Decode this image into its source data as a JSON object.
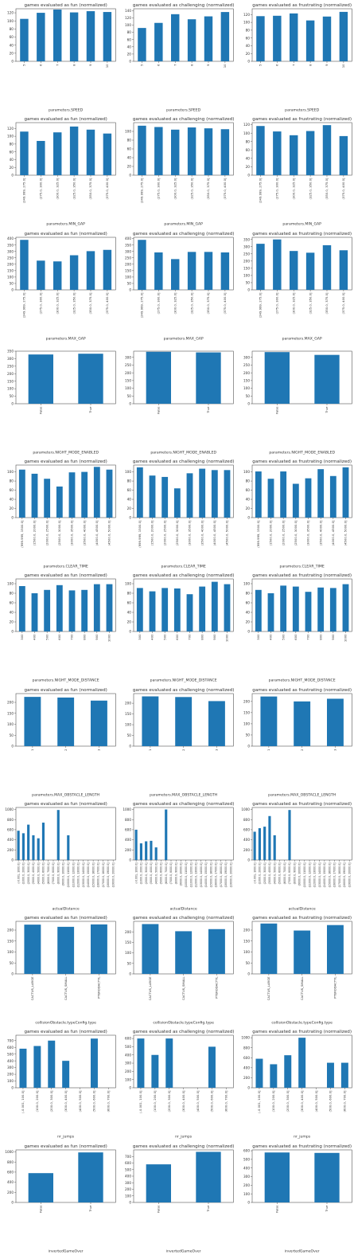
{
  "titles": {
    "fun": "games evaluated as fun (normalized)",
    "challenging": "games evaluated as challenging (normalized)",
    "frustrating": "games evaluated as frustrating (normalized)"
  },
  "bar_color": "#1f77b4",
  "chart_data": [
    {
      "type": "bar",
      "title": "games evaluated as fun (normalized)",
      "xlabel": "parameters.SPEED",
      "ylabel": "",
      "categories": [
        "5",
        "6",
        "7",
        "8",
        "9",
        "10"
      ],
      "values": [
        105,
        120,
        128,
        121,
        124,
        122
      ],
      "ylim": [
        0,
        130
      ],
      "yticks": [
        0,
        20,
        40,
        60,
        80,
        100,
        120
      ]
    },
    {
      "type": "bar",
      "title": "games evaluated as challenging (normalized)",
      "xlabel": "parameters.SPEED",
      "ylabel": "",
      "categories": [
        "5",
        "6",
        "7",
        "8",
        "9",
        "10"
      ],
      "values": [
        92,
        106,
        130,
        116,
        124,
        136
      ],
      "ylim": [
        0,
        145
      ],
      "yticks": [
        0,
        20,
        40,
        60,
        80,
        100,
        120,
        140
      ]
    },
    {
      "type": "bar",
      "title": "games evaluated as frustrating (normalized)",
      "xlabel": "parameters.SPEED",
      "ylabel": "",
      "categories": [
        "5",
        "6",
        "7",
        "8",
        "9",
        "10"
      ],
      "values": [
        116,
        117,
        123,
        105,
        115,
        127
      ],
      "ylim": [
        0,
        135
      ],
      "yticks": [
        0,
        20,
        40,
        60,
        80,
        100,
        120
      ]
    },
    {
      "type": "bar",
      "title": "games evaluated as fun (normalized)",
      "xlabel": "parameters.MIN_GAP",
      "ylabel": "",
      "categories": [
        "(249.999, 275.0]",
        "(275.0, 300.0]",
        "(300.0, 325.0]",
        "(325.0, 350.0]",
        "(350.0, 375.0]",
        "(375.0, 400.0]"
      ],
      "values": [
        112,
        88,
        110,
        125,
        117,
        107
      ],
      "ylim": [
        0,
        135
      ],
      "yticks": [
        0,
        20,
        40,
        60,
        80,
        100,
        120
      ]
    },
    {
      "type": "bar",
      "title": "games evaluated as challenging (normalized)",
      "xlabel": "parameters.MIN_GAP",
      "ylabel": "",
      "categories": [
        "(249.999, 275.0]",
        "(275.0, 300.0]",
        "(300.0, 325.0]",
        "(325.0, 350.0]",
        "(350.0, 375.0]",
        "(375.0, 400.0]"
      ],
      "values": [
        113,
        110,
        104,
        109,
        107,
        105
      ],
      "ylim": [
        0,
        120
      ],
      "yticks": [
        0,
        20,
        40,
        60,
        80,
        100
      ]
    },
    {
      "type": "bar",
      "title": "games evaluated as frustrating (normalized)",
      "xlabel": "parameters.MIN_GAP",
      "ylabel": "",
      "categories": [
        "(249.999, 275.0]",
        "(275.0, 300.0]",
        "(300.0, 325.0]",
        "(325.0, 350.0]",
        "(350.0, 375.0]",
        "(375.0, 400.0]"
      ],
      "values": [
        117,
        104,
        95,
        105,
        119,
        93
      ],
      "ylim": [
        0,
        125
      ],
      "yticks": [
        0,
        20,
        40,
        60,
        80,
        100,
        120
      ]
    },
    {
      "type": "bar",
      "title": "games evaluated as fun (normalized)",
      "xlabel": "parameters.MAX_GAP",
      "ylabel": "",
      "categories": [
        "(249.999, 275.0]",
        "(275.0, 300.0]",
        "(300.0, 325.0]",
        "(325.0, 350.0]",
        "(350.0, 375.0]",
        "(375.0, 400.0]"
      ],
      "values": [
        390,
        228,
        222,
        270,
        302,
        312
      ],
      "ylim": [
        0,
        410
      ],
      "yticks": [
        0,
        50,
        100,
        150,
        200,
        250,
        300,
        350,
        400
      ]
    },
    {
      "type": "bar",
      "title": "games evaluated as challenging (normalized)",
      "xlabel": "parameters.MAX_GAP",
      "ylabel": "",
      "categories": [
        "(249.999, 275.0]",
        "(275.0, 300.0]",
        "(300.0, 325.0]",
        "(325.0, 350.0]",
        "(350.0, 375.0]",
        "(375.0, 400.0]"
      ],
      "values": [
        390,
        292,
        240,
        296,
        296,
        292
      ],
      "ylim": [
        0,
        410
      ],
      "yticks": [
        0,
        50,
        100,
        150,
        200,
        250,
        300,
        350,
        400
      ]
    },
    {
      "type": "bar",
      "title": "games evaluated as frustrating (normalized)",
      "xlabel": "parameters.MAX_GAP",
      "ylabel": "",
      "categories": [
        "(249.999, 275.0]",
        "(275.0, 300.0]",
        "(300.0, 325.0]",
        "(325.0, 350.0]",
        "(350.0, 375.0]",
        "(375.0, 400.0]"
      ],
      "values": [
        320,
        350,
        270,
        258,
        310,
        275
      ],
      "ylim": [
        0,
        365
      ],
      "yticks": [
        0,
        50,
        100,
        150,
        200,
        250,
        300,
        350
      ]
    },
    {
      "type": "bar",
      "title": "",
      "xlabel": "parameters.NIGHT_MODE_ENABLED",
      "ylabel": "",
      "categories": [
        "False",
        "True"
      ],
      "values": [
        328,
        333
      ],
      "ylim": [
        0,
        350
      ],
      "yticks": [
        0,
        50,
        100,
        150,
        200,
        250,
        300,
        350
      ]
    },
    {
      "type": "bar",
      "title": "",
      "xlabel": "parameters.NIGHT_MODE_ENABLED",
      "ylabel": "",
      "categories": [
        "False",
        "True"
      ],
      "values": [
        336,
        332
      ],
      "ylim": [
        0,
        340
      ],
      "yticks": [
        0,
        50,
        100,
        150,
        200,
        250,
        300
      ]
    },
    {
      "type": "bar",
      "title": "",
      "xlabel": "parameters.NIGHT_MODE_ENABLED",
      "ylabel": "",
      "categories": [
        "False",
        "True"
      ],
      "values": [
        334,
        316
      ],
      "ylim": [
        0,
        340
      ],
      "yticks": [
        0,
        50,
        100,
        150,
        200,
        250,
        300
      ]
    },
    {
      "type": "bar",
      "title": "games evaluated as fun (normalized)",
      "xlabel": "parameters.CLEAR_TIME",
      "ylabel": "",
      "categories": [
        "(999.999, 1500.0]",
        "(1500.0, 2000.0]",
        "(2000.0, 2500.0]",
        "(2500.0, 3000.0]",
        "(3000.0, 3500.0]",
        "(3500.0, 4000.0]",
        "(4000.0, 4500.0]",
        "(4500.0, 5000.0]"
      ],
      "values": [
        105,
        96,
        85,
        68,
        99,
        100,
        111,
        105
      ],
      "ylim": [
        0,
        115
      ],
      "yticks": [
        0,
        20,
        40,
        60,
        80,
        100
      ]
    },
    {
      "type": "bar",
      "title": "games evaluated as challenging (normalized)",
      "xlabel": "parameters.CLEAR_TIME",
      "ylabel": "",
      "categories": [
        "(999.999, 1500.0]",
        "(1500.0, 2000.0]",
        "(2000.0, 2500.0]",
        "(2500.0, 3000.0]",
        "(3000.0, 3500.0]",
        "(3500.0, 4000.0]",
        "(4000.0, 4500.0]",
        "(4500.0, 5000.0]"
      ],
      "values": [
        110,
        92,
        89,
        64,
        97,
        107,
        104,
        104
      ],
      "ylim": [
        0,
        115
      ],
      "yticks": [
        0,
        20,
        40,
        60,
        80,
        100
      ]
    },
    {
      "type": "bar",
      "title": "games evaluated as frustrating (normalized)",
      "xlabel": "parameters.CLEAR_TIME",
      "ylabel": "",
      "categories": [
        "(999.999, 1500.0]",
        "(1500.0, 2000.0]",
        "(2000.0, 2500.0]",
        "(2500.0, 3000.0]",
        "(3000.0, 3500.0]",
        "(3500.0, 4000.0]",
        "(4000.0, 4500.0]",
        "(4500.0, 5000.0]"
      ],
      "values": [
        101,
        85,
        101,
        74,
        86,
        106,
        91,
        110
      ],
      "ylim": [
        0,
        115
      ],
      "yticks": [
        0,
        20,
        40,
        60,
        80,
        100
      ]
    },
    {
      "type": "bar",
      "title": "games evaluated as fun (normalized)",
      "xlabel": "parameters.NIGHT_MODE_DISTANCE",
      "ylabel": "",
      "categories": [
        "300",
        "400",
        "500",
        "600",
        "700",
        "800",
        "900",
        "1000"
      ],
      "values": [
        95,
        80,
        87,
        97,
        86,
        87,
        99,
        99
      ],
      "ylim": [
        0,
        110
      ],
      "yticks": [
        0,
        20,
        40,
        60,
        80,
        100
      ]
    },
    {
      "type": "bar",
      "title": "games evaluated as challenging (normalized)",
      "xlabel": "parameters.NIGHT_MODE_DISTANCE",
      "ylabel": "",
      "categories": [
        "300",
        "400",
        "500",
        "600",
        "700",
        "800",
        "900",
        "1000"
      ],
      "values": [
        91,
        84,
        91,
        90,
        78,
        94,
        104,
        99
      ],
      "ylim": [
        0,
        110
      ],
      "yticks": [
        0,
        20,
        40,
        60,
        80,
        100
      ]
    },
    {
      "type": "bar",
      "title": "games evaluated as frustrating (normalized)",
      "xlabel": "parameters.NIGHT_MODE_DISTANCE",
      "ylabel": "",
      "categories": [
        "300",
        "400",
        "500",
        "600",
        "700",
        "800",
        "900",
        "1000"
      ],
      "values": [
        87,
        80,
        96,
        94,
        83,
        92,
        91,
        99
      ],
      "ylim": [
        0,
        110
      ],
      "yticks": [
        0,
        20,
        40,
        60,
        80,
        100
      ]
    },
    {
      "type": "bar",
      "title": "games evaluated as fun (normalized)",
      "xlabel": "parameters.MAX_OBSTACLE_LENGTH",
      "ylabel": "",
      "categories": [
        "1",
        "2",
        "3"
      ],
      "values": [
        225,
        222,
        208
      ],
      "ylim": [
        0,
        240
      ],
      "yticks": [
        0,
        50,
        100,
        150,
        200
      ]
    },
    {
      "type": "bar",
      "title": "games evaluated as challenging (normalized)",
      "xlabel": "parameters.MAX_OBSTACLE_LENGTH",
      "ylabel": "",
      "categories": [
        "1",
        "2",
        "3"
      ],
      "values": [
        232,
        229,
        210
      ],
      "ylim": [
        0,
        245
      ],
      "yticks": [
        0,
        50,
        100,
        150,
        200
      ]
    },
    {
      "type": "bar",
      "title": "games evaluated as frustrating (normalized)",
      "xlabel": "parameters.MAX_OBSTACLE_LENGTH",
      "ylabel": "",
      "categories": [
        "1",
        "2",
        "3"
      ],
      "values": [
        222,
        200,
        212
      ],
      "ylim": [
        0,
        235
      ],
      "yticks": [
        0,
        50,
        100,
        150,
        200
      ]
    },
    {
      "type": "bar",
      "title": "games evaluated as fun (normalized)",
      "xlabel": "actualDistance",
      "ylabel": "",
      "categories": [
        "(-0.001, 1000.0]",
        "(1000.0, 2000.0]",
        "(2000.0, 3000.0]",
        "(3000.0, 4000.0]",
        "(4000.0, 5000.0]",
        "(5000.0, 6000.0]",
        "(6000.0, 7000.0]",
        "(7000.0, 8000.0]",
        "(8000.0, 9000.0]",
        "(9000.0, 10000.0]",
        "(10000.0, 11000.0]",
        "(11000.0, 12000.0]",
        "(12000.0, 13000.0]",
        "(13000.0, 14000.0]",
        "(14000.0, 15000.0]",
        "(15000.0, 16000.0]",
        "(16000.0, 17000.0]",
        "(17000.0, 18000.0]",
        "(18000.0, 19000.0]",
        "(19000.0, 20000.0]"
      ],
      "values": [
        580,
        530,
        700,
        490,
        430,
        740,
        0,
        0,
        990,
        0,
        490,
        0,
        0,
        0,
        0,
        0,
        0,
        0,
        0,
        0
      ],
      "ylim": [
        0,
        1040
      ],
      "yticks": [
        0,
        200,
        400,
        600,
        800,
        1000
      ]
    },
    {
      "type": "bar",
      "title": "games evaluated as challenging (normalized)",
      "xlabel": "actualDistance",
      "ylabel": "",
      "categories": [
        "(-0.001, 1000.0]",
        "(1000.0, 2000.0]",
        "(2000.0, 3000.0]",
        "(3000.0, 4000.0]",
        "(4000.0, 5000.0]",
        "(5000.0, 6000.0]",
        "(6000.0, 7000.0]",
        "(7000.0, 8000.0]",
        "(8000.0, 9000.0]",
        "(9000.0, 10000.0]",
        "(10000.0, 11000.0]",
        "(11000.0, 12000.0]",
        "(12000.0, 13000.0]",
        "(13000.0, 14000.0]",
        "(14000.0, 15000.0]",
        "(15000.0, 16000.0]",
        "(16000.0, 17000.0]",
        "(17000.0, 18000.0]",
        "(18000.0, 19000.0]",
        "(19000.0, 20000.0]"
      ],
      "values": [
        600,
        330,
        370,
        380,
        250,
        0,
        1000,
        0,
        0,
        0,
        0,
        0,
        0,
        0,
        0,
        0,
        0,
        0,
        0,
        0
      ],
      "ylim": [
        0,
        1040
      ],
      "yticks": [
        0,
        200,
        400,
        600,
        800,
        1000
      ]
    },
    {
      "type": "bar",
      "title": "games evaluated as frustrating (normalized)",
      "xlabel": "actualDistance",
      "ylabel": "",
      "categories": [
        "(-0.001, 1000.0]",
        "(1000.0, 2000.0]",
        "(2000.0, 3000.0]",
        "(3000.0, 4000.0]",
        "(4000.0, 5000.0]",
        "(5000.0, 6000.0]",
        "(6000.0, 7000.0]",
        "(7000.0, 8000.0]",
        "(8000.0, 9000.0]",
        "(9000.0, 10000.0]",
        "(10000.0, 11000.0]",
        "(11000.0, 12000.0]",
        "(12000.0, 13000.0]",
        "(13000.0, 14000.0]",
        "(14000.0, 15000.0]",
        "(15000.0, 16000.0]",
        "(16000.0, 17000.0]",
        "(17000.0, 18000.0]",
        "(18000.0, 19000.0]",
        "(19000.0, 20000.0]"
      ],
      "values": [
        560,
        630,
        660,
        870,
        490,
        0,
        0,
        990,
        0,
        0,
        0,
        0,
        0,
        0,
        0,
        0,
        0,
        0,
        0,
        0
      ],
      "ylim": [
        0,
        1040
      ],
      "yticks": [
        0,
        200,
        400,
        600,
        800,
        1000
      ]
    },
    {
      "type": "bar",
      "title": "games evaluated as fun (normalized)",
      "xlabel": "collisionObstacle.typeConfig.type",
      "ylabel": "",
      "categories": [
        "CACTUS_LARGE",
        "CACTUS_SMALL",
        "PTERODACTYL"
      ],
      "values": [
        225,
        215,
        226
      ],
      "ylim": [
        0,
        240
      ],
      "yticks": [
        0,
        50,
        100,
        150,
        200
      ]
    },
    {
      "type": "bar",
      "title": "games evaluated as challenging (normalized)",
      "xlabel": "collisionObstacle.typeConfig.type",
      "ylabel": "",
      "categories": [
        "CACTUS_LARGE",
        "CACTUS_SMALL",
        "PTERODACTYL"
      ],
      "values": [
        237,
        203,
        213
      ],
      "ylim": [
        0,
        250
      ],
      "yticks": [
        0,
        50,
        100,
        150,
        200
      ]
    },
    {
      "type": "bar",
      "title": "games evaluated as frustrating (normalized)",
      "xlabel": "collisionObstacle.typeConfig.type",
      "ylabel": "",
      "categories": [
        "CACTUS_LARGE",
        "CACTUS_SMALL",
        "PTERODACTYL"
      ],
      "values": [
        230,
        198,
        223
      ],
      "ylim": [
        0,
        240
      ],
      "yticks": [
        0,
        50,
        100,
        150,
        200
      ]
    },
    {
      "type": "bar",
      "title": "games evaluated as fun (normalized)",
      "xlabel": "nr_jumps",
      "ylabel": "",
      "categories": [
        "(-0.001, 100.0]",
        "(100.0, 200.0]",
        "(200.0, 300.0]",
        "(300.0, 400.0]",
        "(400.0, 500.0]",
        "(500.0, 600.0]",
        "(600.0, 700.0]"
      ],
      "values": [
        580,
        620,
        700,
        400,
        0,
        730,
        0
      ],
      "ylim": [
        0,
        780
      ],
      "yticks": [
        0,
        100,
        200,
        300,
        400,
        500,
        600,
        700
      ]
    },
    {
      "type": "bar",
      "title": "games evaluated as challenging (normalized)",
      "xlabel": "nr_jumps",
      "ylabel": "",
      "categories": [
        "(-0.001, 100.0]",
        "(100.0, 200.0]",
        "(200.0, 300.0]",
        "(300.0, 400.0]",
        "(400.0, 500.0]",
        "(500.0, 600.0]",
        "(600.0, 700.0]"
      ],
      "values": [
        600,
        400,
        600,
        0,
        0,
        500,
        0
      ],
      "ylim": [
        0,
        640
      ],
      "yticks": [
        0,
        100,
        200,
        300,
        400,
        500,
        600
      ]
    },
    {
      "type": "bar",
      "title": "games evaluated as frustrating (normalized)",
      "xlabel": "nr_jumps",
      "ylabel": "",
      "categories": [
        "(-0.001, 100.0]",
        "(100.0, 200.0]",
        "(200.0, 300.0]",
        "(300.0, 400.0]",
        "(400.0, 500.0]",
        "(500.0, 600.0]",
        "(600.0, 700.0]"
      ],
      "values": [
        580,
        470,
        650,
        1000,
        0,
        500,
        500
      ],
      "ylim": [
        0,
        1050
      ],
      "yticks": [
        0,
        200,
        400,
        600,
        800,
        1000
      ]
    },
    {
      "type": "bar",
      "title": "games evaluated as fun (normalized)",
      "xlabel": "invertedGameOver",
      "ylabel": "",
      "categories": [
        "False",
        "True"
      ],
      "values": [
        580,
        990
      ],
      "ylim": [
        0,
        1040
      ],
      "yticks": [
        0,
        200,
        400,
        600,
        800,
        1000
      ]
    },
    {
      "type": "bar",
      "title": "games evaluated as challenging (normalized)",
      "xlabel": "invertedGameOver",
      "ylabel": "",
      "categories": [
        "False",
        "True"
      ],
      "values": [
        580,
        770
      ],
      "ylim": [
        0,
        800
      ],
      "yticks": [
        0,
        100,
        200,
        300,
        400,
        500,
        600,
        700
      ]
    },
    {
      "type": "bar",
      "title": "games evaluated as frustrating (normalized)",
      "xlabel": "invertedGameOver",
      "ylabel": "",
      "categories": [
        "False",
        "True"
      ],
      "values": [
        580,
        575
      ],
      "ylim": [
        0,
        610
      ],
      "yticks": [
        0,
        100,
        200,
        300,
        400,
        500,
        600
      ]
    }
  ]
}
